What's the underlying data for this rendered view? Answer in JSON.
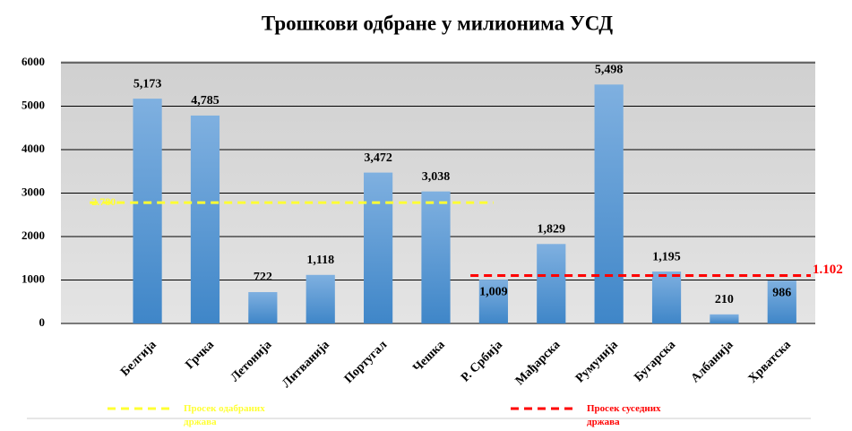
{
  "chart_data": {
    "type": "bar",
    "title": "Трошкови одбране у милионима УСД",
    "categories": [
      null,
      "Белгија",
      "Грчка",
      "Летонија",
      "Литванија",
      "Португал",
      "Чешка",
      "Р. Србија",
      "Мађарска",
      "Румунија",
      "Бугарска",
      "Албанија",
      "Хрватска"
    ],
    "values": [
      null,
      5173,
      4785,
      722,
      1118,
      3472,
      3038,
      1009,
      1829,
      5498,
      1195,
      210,
      986
    ],
    "value_labels": [
      null,
      "5,173",
      "4,785",
      "722",
      "1,118",
      "3,472",
      "3,038",
      "1,009",
      "1,829",
      "5,498",
      "1,195",
      "210",
      "986"
    ],
    "color": "#5b9bd5",
    "ylim": [
      0,
      6000
    ],
    "yticks": [
      0,
      1000,
      2000,
      3000,
      4000,
      5000,
      6000
    ],
    "grid": true,
    "reference_lines": [
      {
        "name": "Просек одабраних држава",
        "value": 2780,
        "label": "2.780",
        "color": "#ffff33"
      },
      {
        "name": "Просек суседних држава",
        "value": 1102,
        "label": "1.102",
        "color": "#ff0000"
      }
    ]
  }
}
